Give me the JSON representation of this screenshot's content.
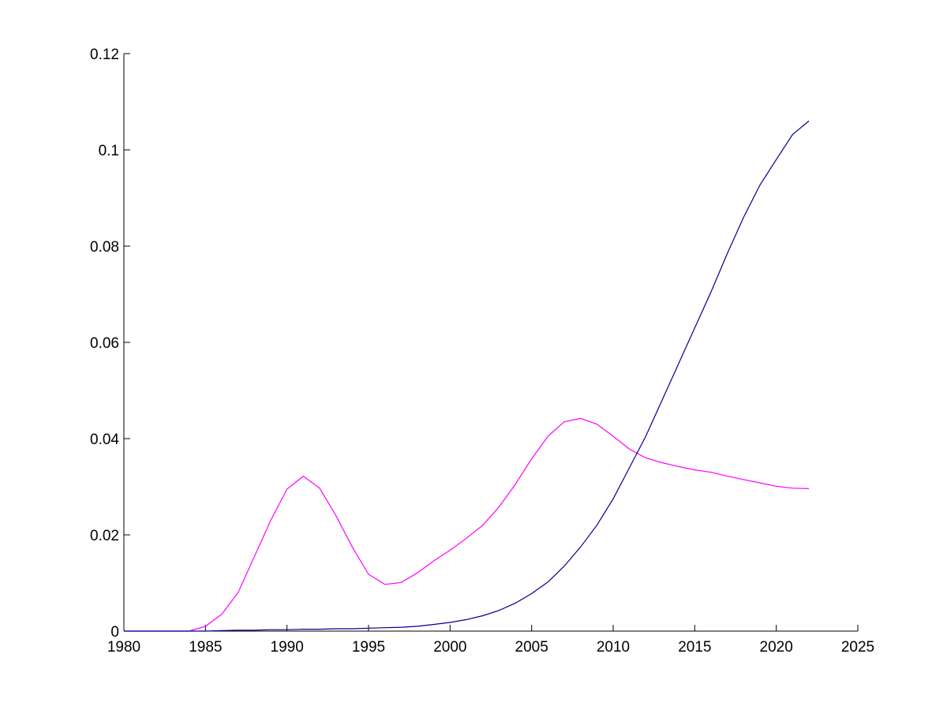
{
  "chart_data": {
    "type": "line",
    "title": "",
    "xlabel": "",
    "ylabel": "",
    "xlim": [
      1980,
      2025
    ],
    "ylim": [
      0,
      0.12
    ],
    "grid": false,
    "legend": "none",
    "x_ticks": [
      1980,
      1985,
      1990,
      1995,
      2000,
      2005,
      2010,
      2015,
      2020,
      2025
    ],
    "x_tick_labels": [
      "1980",
      "1985",
      "1990",
      "1995",
      "2000",
      "2005",
      "2010",
      "2015",
      "2020",
      "2025"
    ],
    "y_ticks": [
      0,
      0.02,
      0.04,
      0.06,
      0.08,
      0.1,
      0.12
    ],
    "y_tick_labels": [
      "0",
      "0.02",
      "0.04",
      "0.06",
      "0.08",
      "0.1",
      "0.12"
    ],
    "x": [
      1980,
      1981,
      1982,
      1983,
      1984,
      1985,
      1986,
      1987,
      1988,
      1989,
      1990,
      1991,
      1992,
      1993,
      1994,
      1995,
      1996,
      1997,
      1998,
      1999,
      2000,
      2001,
      2002,
      2003,
      2004,
      2005,
      2006,
      2007,
      2008,
      2009,
      2010,
      2011,
      2012,
      2013,
      2014,
      2015,
      2016,
      2017,
      2018,
      2019,
      2020,
      2021,
      2022
    ],
    "series": [
      {
        "color": "#ff00ff",
        "values": [
          0,
          0,
          0,
          0,
          0,
          0.001,
          0.0035,
          0.008,
          0.0155,
          0.023,
          0.0295,
          0.0322,
          0.0297,
          0.024,
          0.0175,
          0.0118,
          0.0097,
          0.0101,
          0.0121,
          0.0146,
          0.0168,
          0.0193,
          0.022,
          0.0258,
          0.0305,
          0.0358,
          0.0405,
          0.0435,
          0.0442,
          0.043,
          0.0405,
          0.0378,
          0.036,
          0.035,
          0.0342,
          0.0335,
          0.033,
          0.0322,
          0.0315,
          0.0308,
          0.0301,
          0.0297,
          0.0296
        ]
      },
      {
        "color": "#00008b",
        "values": [
          0,
          0,
          0,
          0,
          0,
          0,
          0.0001,
          0.0002,
          0.0002,
          0.0003,
          0.0003,
          0.0004,
          0.0004,
          0.0005,
          0.0005,
          0.0006,
          0.0007,
          0.0008,
          0.001,
          0.0014,
          0.0018,
          0.0024,
          0.0032,
          0.0043,
          0.0058,
          0.0078,
          0.0102,
          0.0135,
          0.0175,
          0.022,
          0.0275,
          0.034,
          0.0405,
          0.048,
          0.0555,
          0.063,
          0.0705,
          0.0785,
          0.086,
          0.0927,
          0.098,
          0.1032,
          0.106
        ]
      }
    ]
  }
}
